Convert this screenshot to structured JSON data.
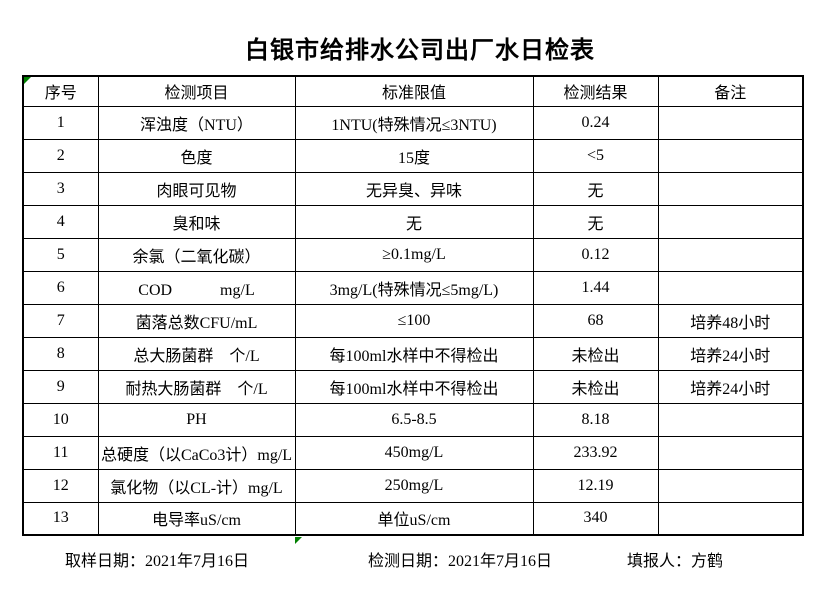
{
  "title": "白银市给排水公司出厂水日检表",
  "table": {
    "headers": [
      "序号",
      "检测项目",
      "标准限值",
      "检测结果",
      "备注"
    ],
    "rows": [
      {
        "seq": "1",
        "item": "浑浊度（NTU）",
        "limit": "1NTU(特殊情况≤3NTU)",
        "result": "0.24",
        "remark": ""
      },
      {
        "seq": "2",
        "item": "色度",
        "limit": "15度",
        "result": "<5",
        "remark": ""
      },
      {
        "seq": "3",
        "item": "肉眼可见物",
        "limit": "无异臭、异味",
        "result": "无",
        "remark": ""
      },
      {
        "seq": "4",
        "item": "臭和味",
        "limit": "无",
        "result": "无",
        "remark": ""
      },
      {
        "seq": "5",
        "item": "余氯（二氧化碳）",
        "limit": "≥0.1mg/L",
        "result": "0.12",
        "remark": ""
      },
      {
        "seq": "6",
        "item": "COD　　　mg/L",
        "limit": "3mg/L(特殊情况≤5mg/L)",
        "result": "1.44",
        "remark": ""
      },
      {
        "seq": "7",
        "item": "菌落总数CFU/mL",
        "limit": "≤100",
        "result": "68",
        "remark": "培养48小时"
      },
      {
        "seq": "8",
        "item": "总大肠菌群　个/L",
        "limit": "每100ml水样中不得检出",
        "result": "未检出",
        "remark": "培养24小时"
      },
      {
        "seq": "9",
        "item": "耐热大肠菌群　个/L",
        "limit": "每100ml水样中不得检出",
        "result": "未检出",
        "remark": "培养24小时"
      },
      {
        "seq": "10",
        "item": "PH",
        "limit": "6.5-8.5",
        "result": "8.18",
        "remark": ""
      },
      {
        "seq": "11",
        "item": "总硬度（以CaCo3计）mg/L",
        "limit": "450mg/L",
        "result": "233.92",
        "remark": ""
      },
      {
        "seq": "12",
        "item": "氯化物（以CL-计）mg/L",
        "limit": "250mg/L",
        "result": "12.19",
        "remark": ""
      },
      {
        "seq": "13",
        "item": "电导率uS/cm",
        "limit": "单位uS/cm",
        "result": "340",
        "remark": ""
      }
    ]
  },
  "footer": {
    "sampling_label": "取样日期：",
    "sampling_value": "2021年7月16日",
    "testing_label": "检测日期：",
    "testing_value": "2021年7月16日",
    "reporter_label": "填报人：",
    "reporter_value": "方鹤"
  },
  "markers": {
    "color": "#008000",
    "positions": [
      "table-top-left",
      "below-bottom-border-column-3"
    ]
  }
}
